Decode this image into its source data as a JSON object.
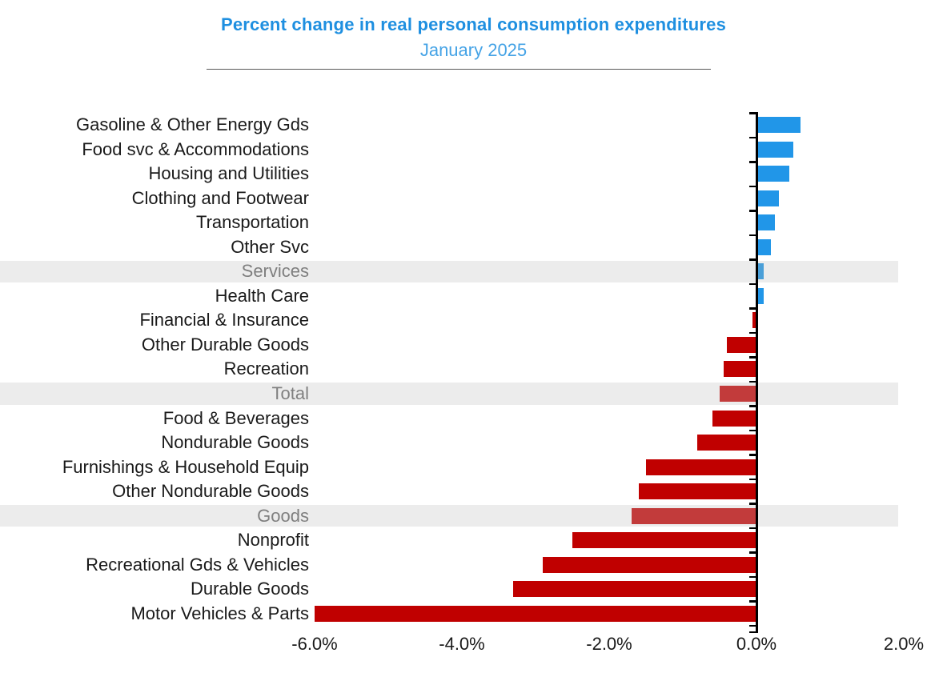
{
  "chart_data": {
    "type": "bar",
    "orientation": "horizontal",
    "title": "Percent change in real personal consumption expenditures",
    "subtitle": "January 2025",
    "xlabel": "",
    "ylabel": "",
    "xlim": [
      -6.6,
      2.0
    ],
    "grid": false,
    "legend": "none",
    "x_ticks": [
      {
        "label": "-6.0%",
        "value": -6.0
      },
      {
        "label": "-4.0%",
        "value": -4.0
      },
      {
        "label": "-2.0%",
        "value": -2.0
      },
      {
        "label": "0.0%",
        "value": 0.0
      },
      {
        "label": "2.0%",
        "value": 2.0
      }
    ],
    "categories": [
      "Gasoline & Other Energy Gds",
      "Food svc & Accommodations",
      "Housing and Utilities",
      "Clothing and Footwear",
      "Transportation",
      "Other Svc",
      "Services",
      "Health Care",
      "Financial & Insurance",
      "Other Durable Goods",
      "Recreation",
      "Total",
      "Food & Beverages",
      "Nondurable Goods",
      "Furnishings & Household Equip",
      "Other Nondurable Goods",
      "Goods",
      "Nonprofit",
      "Recreational Gds & Vehicles",
      "Durable Goods",
      "Motor Vehicles & Parts"
    ],
    "values": [
      0.6,
      0.5,
      0.45,
      0.3,
      0.25,
      0.2,
      0.1,
      0.1,
      -0.05,
      -0.4,
      -0.45,
      -0.5,
      -0.6,
      -0.8,
      -1.5,
      -1.6,
      -1.7,
      -2.5,
      -2.9,
      -3.3,
      -6.0
    ],
    "highlighted_categories": [
      "Services",
      "Total",
      "Goods"
    ]
  },
  "colors": {
    "bar_positive": "#2196e8",
    "bar_positive_muted": "#4a9fd8",
    "bar_negative": "#c00000",
    "bar_negative_muted": "#c23b3b",
    "highlight_band": "#ececec",
    "label_default": "#1a1a1a",
    "label_muted": "#7f7f7f",
    "title": "#1e8fe0",
    "subtitle": "#45a3e6",
    "axis": "#000000"
  }
}
